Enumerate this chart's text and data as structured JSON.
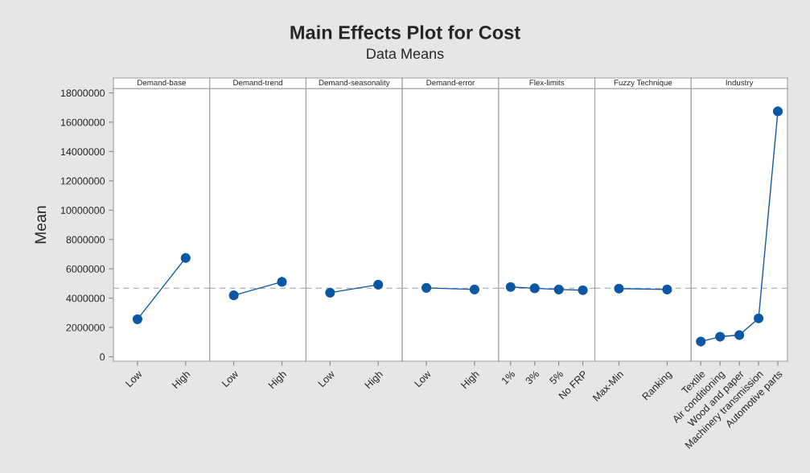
{
  "chart_data": [
    {
      "type": "other",
      "title": "Main Effects Plot for Cost",
      "subtitle": "Data Means"
    },
    {
      "type": "line",
      "title": "Demand-base",
      "ylabel": "Mean",
      "categories": [
        "Low",
        "High"
      ],
      "values": [
        2560000,
        6740000
      ],
      "color": "#0b57a4",
      "marker": "circle",
      "ylim": [
        -300000,
        18300000
      ],
      "yticks": [
        0,
        2000000,
        4000000,
        6000000,
        8000000,
        10000000,
        12000000,
        14000000,
        16000000,
        18000000
      ],
      "ref_lines": [
        {
          "axis": "y",
          "value": 4670000,
          "color": "#b0b0b0",
          "line_style": "dashed"
        }
      ],
      "grid": false
    },
    {
      "type": "line",
      "title": "Demand-trend",
      "categories": [
        "Low",
        "High"
      ],
      "values": [
        4190000,
        5110000
      ],
      "color": "#0b57a4",
      "marker": "circle",
      "ylim": [
        -300000,
        18300000
      ],
      "tick_labels": "x",
      "ref_lines": [
        {
          "axis": "y",
          "value": 4670000,
          "color": "#b0b0b0",
          "line_style": "dashed"
        }
      ],
      "grid": false
    },
    {
      "type": "line",
      "title": "Demand-seasonality",
      "categories": [
        "Low",
        "High"
      ],
      "values": [
        4370000,
        4920000
      ],
      "color": "#0b57a4",
      "marker": "circle",
      "ylim": [
        -300000,
        18300000
      ],
      "tick_labels": "x",
      "ref_lines": [
        {
          "axis": "y",
          "value": 4670000,
          "color": "#b0b0b0",
          "line_style": "dashed"
        }
      ],
      "grid": false
    },
    {
      "type": "line",
      "title": "Demand-error",
      "categories": [
        "Low",
        "High"
      ],
      "values": [
        4700000,
        4590000
      ],
      "color": "#0b57a4",
      "marker": "circle",
      "ylim": [
        -300000,
        18300000
      ],
      "tick_labels": "x",
      "ref_lines": [
        {
          "axis": "y",
          "value": 4670000,
          "color": "#b0b0b0",
          "line_style": "dashed"
        }
      ],
      "grid": false
    },
    {
      "type": "line",
      "title": "Flex-limits",
      "categories": [
        "1%",
        "3%",
        "5%",
        "No FRP"
      ],
      "values": [
        4760000,
        4670000,
        4590000,
        4540000
      ],
      "color": "#0b57a4",
      "marker": "circle",
      "ylim": [
        -300000,
        18300000
      ],
      "tick_labels": "x",
      "ref_lines": [
        {
          "axis": "y",
          "value": 4670000,
          "color": "#b0b0b0",
          "line_style": "dashed"
        }
      ],
      "grid": false
    },
    {
      "type": "line",
      "title": "Fuzzy Technique",
      "categories": [
        "Max-Min",
        "Ranking"
      ],
      "values": [
        4650000,
        4590000
      ],
      "color": "#0b57a4",
      "marker": "circle",
      "ylim": [
        -300000,
        18300000
      ],
      "tick_labels": "x",
      "ref_lines": [
        {
          "axis": "y",
          "value": 4670000,
          "color": "#b0b0b0",
          "line_style": "dashed"
        }
      ],
      "grid": false
    },
    {
      "type": "line",
      "title": "Industry",
      "categories": [
        "Textile",
        "Air conditioning",
        "Wood and paper",
        "Machinery transmission",
        "Automotive parts"
      ],
      "values": [
        1040000,
        1370000,
        1480000,
        2620000,
        16740000
      ],
      "color": "#0b57a4",
      "marker": "circle",
      "ylim": [
        -300000,
        18300000
      ],
      "tick_labels": "x",
      "ref_lines": [
        {
          "axis": "y",
          "value": 4670000,
          "color": "#b0b0b0",
          "line_style": "dashed"
        }
      ],
      "grid": false
    }
  ]
}
